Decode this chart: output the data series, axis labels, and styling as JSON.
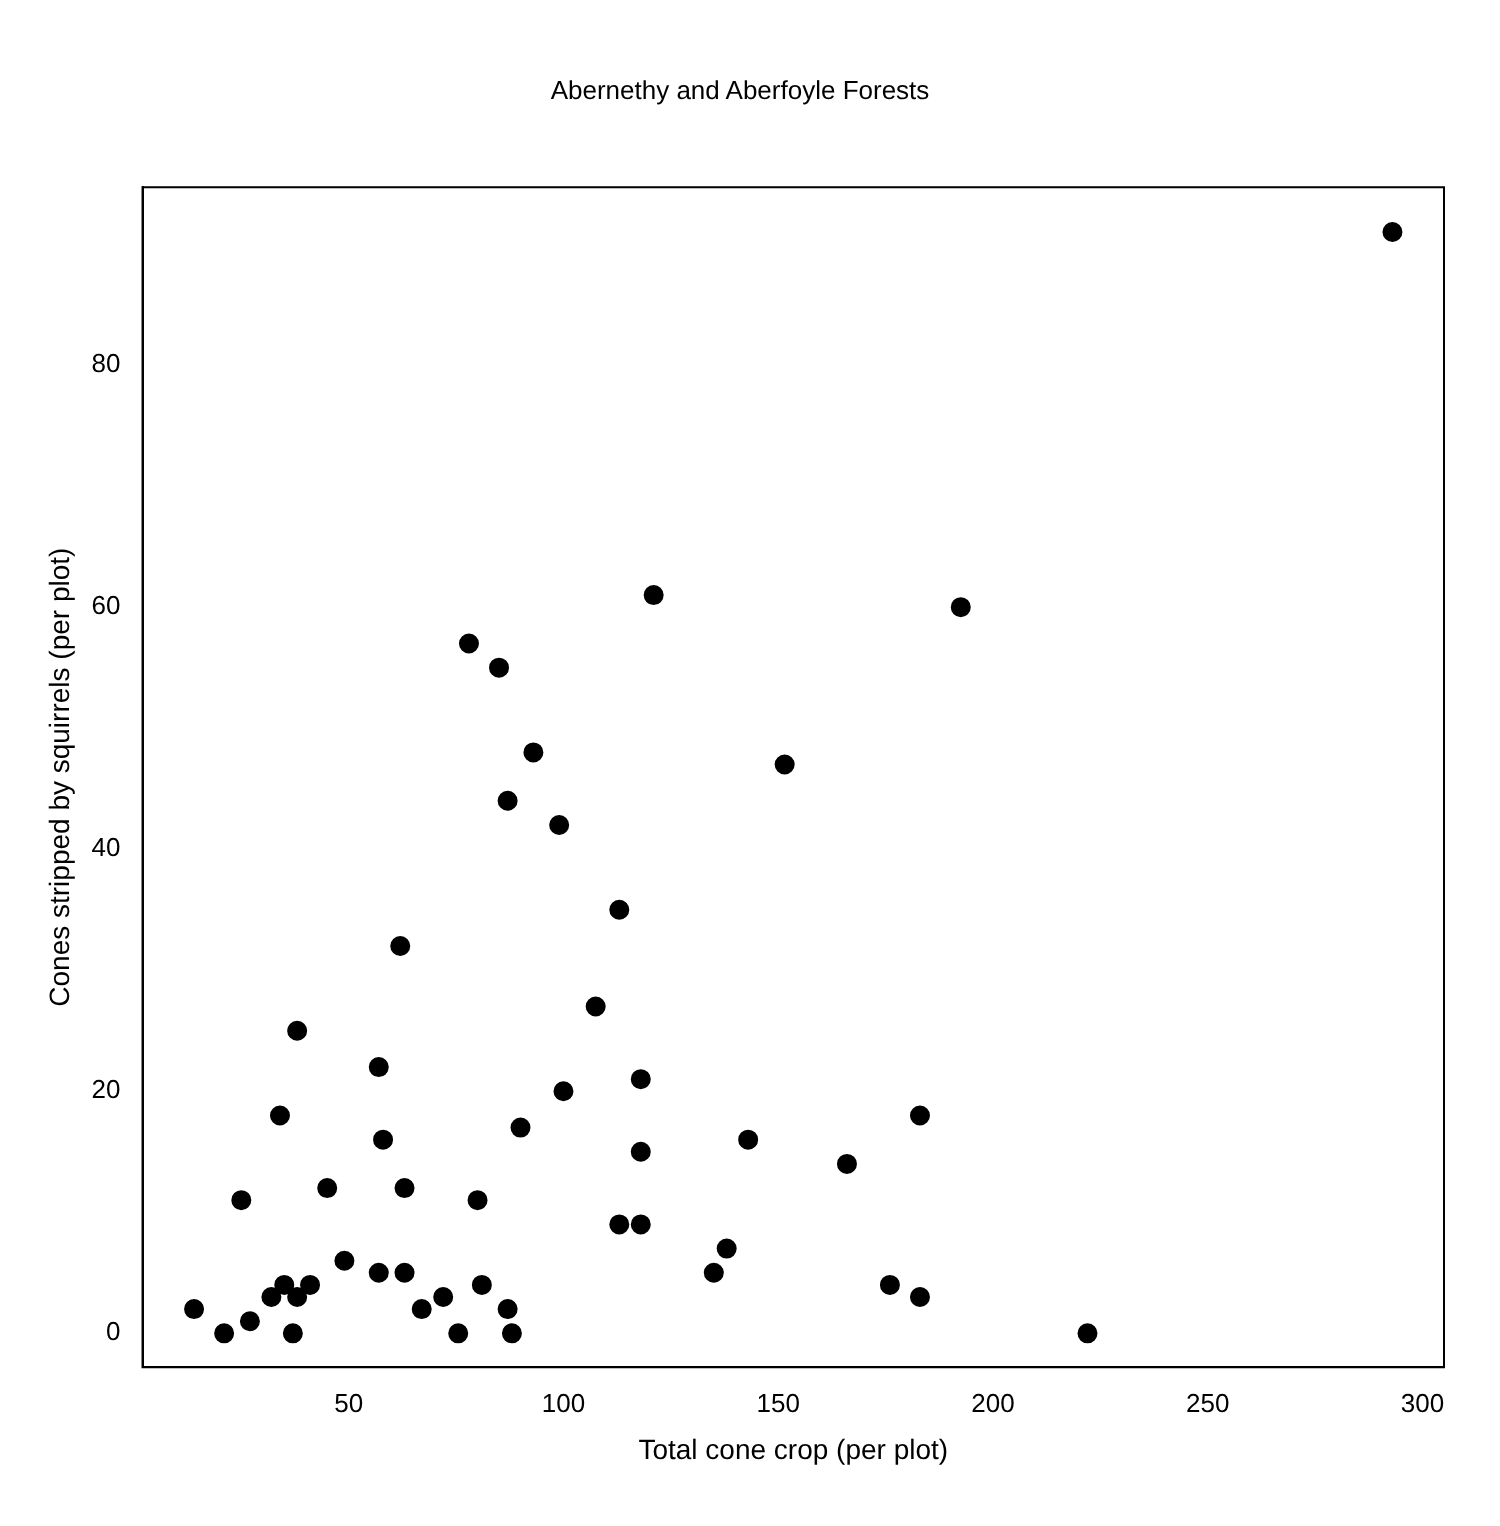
{
  "chart_data": {
    "type": "scatter",
    "title": "Abernethy and Aberfoyle Forests",
    "xlabel": "Total cone crop (per plot)",
    "ylabel": "Cones stripped by squirrels (per plot)",
    "x": [
      113,
      62,
      107.5,
      38,
      57,
      100,
      118,
      34,
      58,
      90,
      118,
      25,
      45,
      63,
      80,
      113,
      118,
      49,
      57,
      63,
      81,
      35,
      41,
      32,
      38,
      72,
      14,
      27,
      67,
      87,
      21,
      37,
      75.5,
      88,
      121,
      78,
      85,
      93,
      87,
      99,
      143,
      166,
      183,
      138,
      135,
      176,
      183,
      222,
      151.5,
      192.5,
      293
    ],
    "values": [
      35,
      32,
      27,
      25,
      22,
      20,
      21,
      18,
      16,
      17,
      15,
      11,
      12,
      12,
      11,
      9,
      9,
      6,
      5,
      5,
      4,
      4,
      4,
      3,
      3,
      3,
      2,
      1,
      2,
      2,
      0,
      0,
      0,
      0,
      61,
      57,
      55,
      48,
      44,
      42,
      16,
      14,
      18,
      7,
      5,
      4,
      3,
      0,
      47,
      60,
      91
    ],
    "color": "#000000",
    "marker": "circle",
    "grid": false,
    "legend": false,
    "xlim": [
      2,
      305
    ],
    "ylim": [
      -2.8,
      94.7
    ],
    "xticks": [
      50,
      100,
      150,
      200,
      250,
      300
    ],
    "yticks": [
      0,
      20,
      40,
      60,
      80
    ]
  }
}
